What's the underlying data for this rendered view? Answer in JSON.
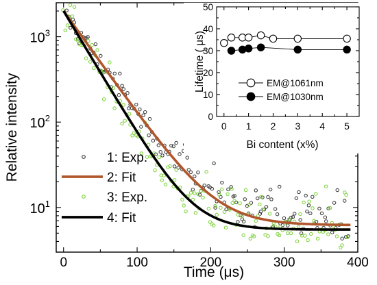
{
  "chart_data": [
    {
      "id": "main",
      "type": "scatter",
      "xlabel": "Time (μs)",
      "ylabel": "Relative intensity",
      "xlim": [
        -10,
        400
      ],
      "ylim": [
        3,
        2500
      ],
      "y_scale": "log",
      "x_ticks": [
        "0",
        "100",
        "200",
        "300",
        "400"
      ],
      "y_ticks": [
        {
          "base": "10",
          "exp": "1",
          "value": 10
        },
        {
          "base": "10",
          "exp": "2",
          "value": 100
        },
        {
          "base": "10",
          "exp": "3",
          "value": 1000
        }
      ],
      "legend_position": "bottom-left",
      "series": [
        {
          "name": "1: Exp.",
          "kind": "scatter",
          "color": "#3a3a3a",
          "tau": 36,
          "amplitude": 2000,
          "floor": 6.5
        },
        {
          "name": "2: Fit",
          "kind": "line",
          "color": "#b0562c",
          "tau": 36,
          "amplitude": 2000,
          "floor": 6.2
        },
        {
          "name": "3: Exp.",
          "kind": "scatter",
          "color": "#7fd33c",
          "tau": 30,
          "amplitude": 2000,
          "floor": 5.2
        },
        {
          "name": "4: Fit",
          "kind": "line",
          "color": "#000000",
          "tau": 30,
          "amplitude": 2000,
          "floor": 5.5
        }
      ]
    },
    {
      "id": "inset",
      "type": "scatter",
      "xlabel": "Bi content (x%)",
      "ylabel": "Lifetime ( μs)",
      "xlim": [
        -0.3,
        5.5
      ],
      "ylim": [
        0,
        50
      ],
      "x_ticks": [
        "0",
        "1",
        "2",
        "3",
        "4",
        "5"
      ],
      "y_ticks": [
        "0",
        "10",
        "20",
        "30",
        "40",
        "50"
      ],
      "series": [
        {
          "name": "EM@1061nm",
          "marker": "open-circle",
          "x": [
            0,
            0.3,
            0.75,
            1,
            1.5,
            2,
            3,
            5
          ],
          "y": [
            33.5,
            36,
            36,
            36,
            37,
            35.5,
            35.5,
            35.5
          ]
        },
        {
          "name": "EM@1030nm",
          "marker": "filled-circle",
          "x": [
            0.3,
            0.75,
            1,
            1.5,
            3,
            5
          ],
          "y": [
            30,
            30.5,
            31,
            31.5,
            30.5,
            30.5
          ]
        }
      ]
    }
  ]
}
